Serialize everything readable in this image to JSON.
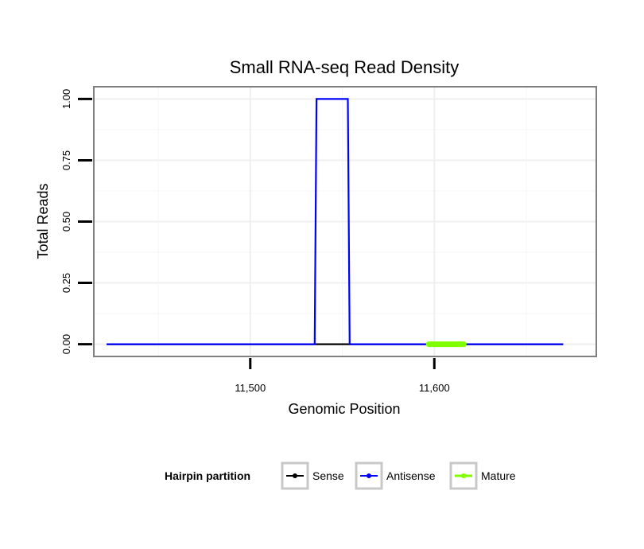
{
  "chart_data": {
    "type": "line",
    "title": "Small RNA-seq Read Density",
    "xlabel": "Genomic Position",
    "ylabel": "Total Reads",
    "xlim": [
      11415,
      11688
    ],
    "ylim": [
      -0.05,
      1.05
    ],
    "x_ticks": [
      11500,
      11600
    ],
    "x_tick_labels": [
      "11,500",
      "11,600"
    ],
    "y_ticks": [
      0,
      0.25,
      0.5,
      0.75,
      1
    ],
    "y_tick_labels": [
      "0.00",
      "0.25",
      "0.50",
      "0.75",
      "1.00"
    ],
    "grid": true,
    "legend": {
      "title": "Hairpin partition",
      "position": "bottom"
    },
    "series": [
      {
        "name": "Sense",
        "color": "#000000",
        "x": [
          11422,
          11670
        ],
        "y": [
          0,
          0
        ]
      },
      {
        "name": "Antisense",
        "color": "#0000ff",
        "x": [
          11422,
          11535,
          11536,
          11553,
          11554,
          11670
        ],
        "y": [
          0,
          0,
          1,
          1,
          0,
          0
        ]
      },
      {
        "name": "Mature",
        "color": "#7fff00",
        "x": [
          11597,
          11616
        ],
        "y": [
          0,
          0
        ]
      }
    ]
  }
}
